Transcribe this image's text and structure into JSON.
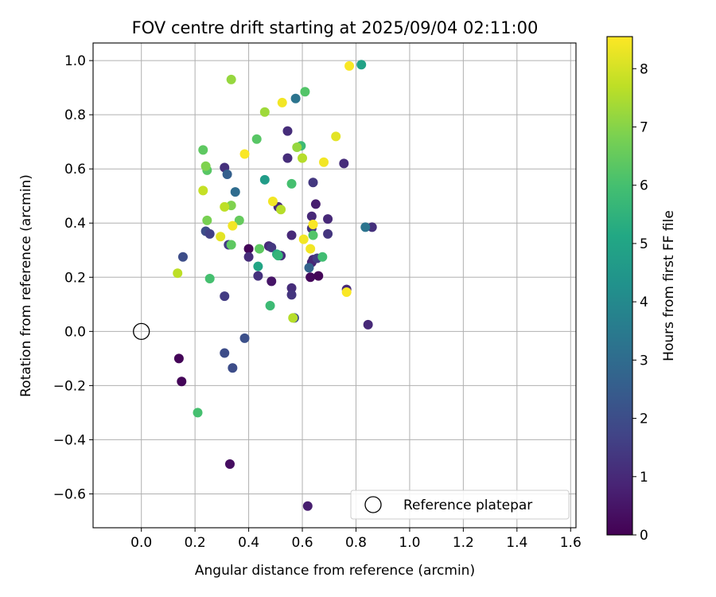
{
  "chart_data": {
    "type": "scatter",
    "title": "FOV centre drift starting at 2025/09/04 02:11:00",
    "xlabel": "Angular distance from reference (arcmin)",
    "ylabel": "Rotation from reference (arcmin)",
    "xlim": [
      -0.18,
      1.62
    ],
    "ylim": [
      -0.725,
      1.065
    ],
    "xticks": [
      "0.0",
      "0.2",
      "0.4",
      "0.6",
      "0.8",
      "1.0",
      "1.2",
      "1.4",
      "1.6"
    ],
    "yticks": [
      "−0.6",
      "−0.4",
      "−0.2",
      "0.0",
      "0.2",
      "0.4",
      "0.6",
      "0.8",
      "1.0"
    ],
    "grid": true,
    "legend": {
      "placement": "lower-right",
      "entries": [
        "Reference platepar"
      ]
    },
    "colorbar": {
      "label": "Hours from first FF file",
      "colormap": "viridis",
      "range": [
        0,
        8.55
      ],
      "ticks": [
        "0",
        "1",
        "2",
        "3",
        "4",
        "5",
        "6",
        "7",
        "8"
      ]
    },
    "reference_point": {
      "x": 0.0,
      "y": 0.0,
      "label": "Reference platepar"
    },
    "points": [
      {
        "x": 0.14,
        "y": -0.1,
        "c": 0.1
      },
      {
        "x": 0.15,
        "y": -0.185,
        "c": 0.1
      },
      {
        "x": 0.33,
        "y": -0.49,
        "c": 0.3
      },
      {
        "x": 0.62,
        "y": -0.645,
        "c": 0.7
      },
      {
        "x": 0.845,
        "y": 0.025,
        "c": 1.0
      },
      {
        "x": 0.86,
        "y": 0.385,
        "c": 1.2
      },
      {
        "x": 0.63,
        "y": 0.2,
        "c": 0.2
      },
      {
        "x": 0.66,
        "y": 0.205,
        "c": 0.1
      },
      {
        "x": 0.4,
        "y": 0.305,
        "c": 0.1
      },
      {
        "x": 0.485,
        "y": 0.185,
        "c": 0.5
      },
      {
        "x": 0.56,
        "y": 0.16,
        "c": 1.1
      },
      {
        "x": 0.56,
        "y": 0.135,
        "c": 1.3
      },
      {
        "x": 0.57,
        "y": 0.05,
        "c": 2.0
      },
      {
        "x": 0.31,
        "y": 0.13,
        "c": 1.5
      },
      {
        "x": 0.31,
        "y": -0.08,
        "c": 2.0
      },
      {
        "x": 0.34,
        "y": -0.135,
        "c": 2.0
      },
      {
        "x": 0.385,
        "y": -0.025,
        "c": 2.1
      },
      {
        "x": 0.155,
        "y": 0.275,
        "c": 2.0
      },
      {
        "x": 0.435,
        "y": 0.205,
        "c": 1.2
      },
      {
        "x": 0.4,
        "y": 0.275,
        "c": 1.1
      },
      {
        "x": 0.475,
        "y": 0.315,
        "c": 1.0
      },
      {
        "x": 0.485,
        "y": 0.31,
        "c": 1.4
      },
      {
        "x": 0.51,
        "y": 0.46,
        "c": 1.0
      },
      {
        "x": 0.52,
        "y": 0.28,
        "c": 1.1
      },
      {
        "x": 0.56,
        "y": 0.355,
        "c": 1.0
      },
      {
        "x": 0.545,
        "y": 0.64,
        "c": 1.1
      },
      {
        "x": 0.545,
        "y": 0.74,
        "c": 1.1
      },
      {
        "x": 0.64,
        "y": 0.55,
        "c": 1.4
      },
      {
        "x": 0.65,
        "y": 0.47,
        "c": 0.7
      },
      {
        "x": 0.635,
        "y": 0.425,
        "c": 1.0
      },
      {
        "x": 0.635,
        "y": 0.38,
        "c": 1.3
      },
      {
        "x": 0.635,
        "y": 0.255,
        "c": 0.8
      },
      {
        "x": 0.64,
        "y": 0.265,
        "c": 1.0
      },
      {
        "x": 0.655,
        "y": 0.27,
        "c": 1.5
      },
      {
        "x": 0.625,
        "y": 0.235,
        "c": 2.7
      },
      {
        "x": 0.695,
        "y": 0.415,
        "c": 1.0
      },
      {
        "x": 0.695,
        "y": 0.36,
        "c": 1.3
      },
      {
        "x": 0.755,
        "y": 0.62,
        "c": 1.1
      },
      {
        "x": 0.765,
        "y": 0.155,
        "c": 1.0
      },
      {
        "x": 0.31,
        "y": 0.605,
        "c": 1.2
      },
      {
        "x": 0.32,
        "y": 0.58,
        "c": 2.6
      },
      {
        "x": 0.35,
        "y": 0.515,
        "c": 3.0
      },
      {
        "x": 0.24,
        "y": 0.37,
        "c": 2.0
      },
      {
        "x": 0.255,
        "y": 0.36,
        "c": 1.6
      },
      {
        "x": 0.325,
        "y": 0.32,
        "c": 1.5
      },
      {
        "x": 0.575,
        "y": 0.86,
        "c": 3.3
      },
      {
        "x": 0.835,
        "y": 0.385,
        "c": 3.3
      },
      {
        "x": 0.82,
        "y": 0.985,
        "c": 4.9
      },
      {
        "x": 0.46,
        "y": 0.56,
        "c": 4.7
      },
      {
        "x": 0.435,
        "y": 0.24,
        "c": 5.0
      },
      {
        "x": 0.505,
        "y": 0.285,
        "c": 5.3
      },
      {
        "x": 0.51,
        "y": 0.28,
        "c": 5.6
      },
      {
        "x": 0.48,
        "y": 0.095,
        "c": 5.8
      },
      {
        "x": 0.21,
        "y": -0.3,
        "c": 6.0
      },
      {
        "x": 0.255,
        "y": 0.195,
        "c": 6.0
      },
      {
        "x": 0.595,
        "y": 0.685,
        "c": 5.8
      },
      {
        "x": 0.61,
        "y": 0.885,
        "c": 6.2
      },
      {
        "x": 0.56,
        "y": 0.545,
        "c": 6.0
      },
      {
        "x": 0.64,
        "y": 0.355,
        "c": 6.2
      },
      {
        "x": 0.675,
        "y": 0.275,
        "c": 5.9
      },
      {
        "x": 0.43,
        "y": 0.71,
        "c": 6.3
      },
      {
        "x": 0.44,
        "y": 0.305,
        "c": 6.4
      },
      {
        "x": 0.335,
        "y": 0.32,
        "c": 6.4
      },
      {
        "x": 0.365,
        "y": 0.41,
        "c": 6.5
      },
      {
        "x": 0.23,
        "y": 0.67,
        "c": 6.4
      },
      {
        "x": 0.245,
        "y": 0.595,
        "c": 6.3
      },
      {
        "x": 0.24,
        "y": 0.61,
        "c": 6.9
      },
      {
        "x": 0.245,
        "y": 0.41,
        "c": 6.8
      },
      {
        "x": 0.335,
        "y": 0.465,
        "c": 6.9
      },
      {
        "x": 0.335,
        "y": 0.93,
        "c": 7.2
      },
      {
        "x": 0.46,
        "y": 0.81,
        "c": 7.3
      },
      {
        "x": 0.58,
        "y": 0.68,
        "c": 7.2
      },
      {
        "x": 0.6,
        "y": 0.64,
        "c": 7.6
      },
      {
        "x": 0.565,
        "y": 0.05,
        "c": 7.6
      },
      {
        "x": 0.31,
        "y": 0.46,
        "c": 7.7
      },
      {
        "x": 0.52,
        "y": 0.45,
        "c": 7.6
      },
      {
        "x": 0.135,
        "y": 0.215,
        "c": 7.7
      },
      {
        "x": 0.23,
        "y": 0.52,
        "c": 7.8
      },
      {
        "x": 0.725,
        "y": 0.72,
        "c": 8.2
      },
      {
        "x": 0.525,
        "y": 0.845,
        "c": 8.4
      },
      {
        "x": 0.775,
        "y": 0.98,
        "c": 8.5
      },
      {
        "x": 0.385,
        "y": 0.655,
        "c": 8.5
      },
      {
        "x": 0.49,
        "y": 0.48,
        "c": 8.4
      },
      {
        "x": 0.295,
        "y": 0.35,
        "c": 8.2
      },
      {
        "x": 0.34,
        "y": 0.39,
        "c": 8.4
      },
      {
        "x": 0.605,
        "y": 0.34,
        "c": 8.4
      },
      {
        "x": 0.63,
        "y": 0.305,
        "c": 8.4
      },
      {
        "x": 0.64,
        "y": 0.395,
        "c": 8.5
      },
      {
        "x": 0.68,
        "y": 0.625,
        "c": 8.4
      },
      {
        "x": 0.765,
        "y": 0.145,
        "c": 8.5
      }
    ]
  }
}
